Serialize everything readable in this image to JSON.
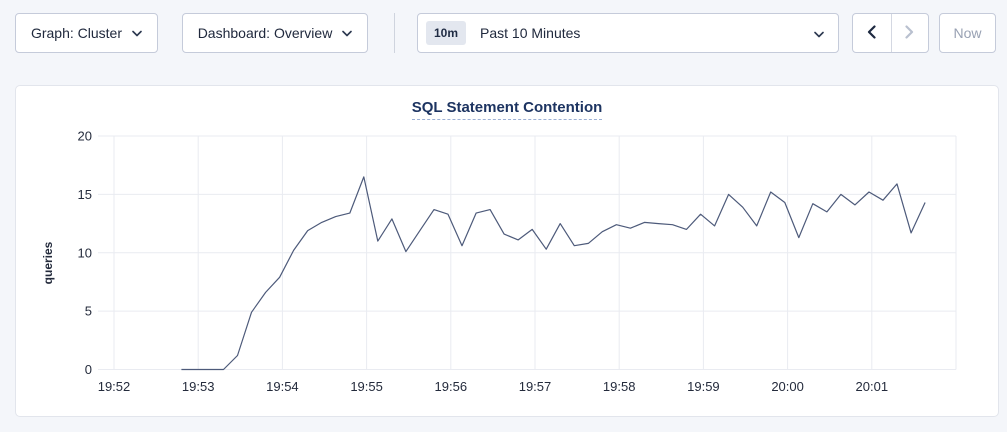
{
  "toolbar": {
    "graph_dropdown": {
      "label": "Graph: Cluster"
    },
    "dashboard_dropdown": {
      "label": "Dashboard: Overview"
    },
    "time_range": {
      "badge": "10m",
      "label": "Past 10 Minutes"
    },
    "now_button_label": "Now"
  },
  "icons": {
    "chevron_down": "chevron-down-icon",
    "chevron_left": "chevron-left-icon",
    "chevron_right": "chevron-right-icon"
  },
  "colors": {
    "page_bg": "#f4f6fa",
    "line": "#4d5a7a",
    "grid": "#e9ebf1",
    "tick_text": "#242b3c",
    "title": "#1d3461",
    "disabled": "#b9c0cf",
    "enabled_arrow": "#1d2940"
  },
  "chart_data": {
    "type": "line",
    "title": "SQL Statement Contention",
    "xlabel": "",
    "ylabel": "queries",
    "ylim": [
      0,
      20
    ],
    "yticks": [
      0,
      5,
      10,
      15,
      20
    ],
    "xticks": [
      "19:52",
      "19:53",
      "19:54",
      "19:55",
      "19:56",
      "19:57",
      "19:58",
      "19:59",
      "20:00",
      "20:01"
    ],
    "grid": true,
    "legend": "none",
    "line_color": "#4d5a7a",
    "series": [
      {
        "name": "queries",
        "t_start_sec": 48,
        "t_step_sec": 10,
        "x_origin_time": "19:52:00",
        "values": [
          0,
          0,
          0,
          0,
          1.2,
          4.9,
          6.6,
          7.9,
          10.2,
          11.9,
          12.6,
          13.1,
          13.4,
          16.5,
          11.0,
          12.9,
          10.1,
          11.9,
          13.7,
          13.3,
          10.6,
          13.4,
          13.7,
          11.6,
          11.1,
          12.0,
          10.3,
          12.5,
          10.6,
          10.8,
          11.8,
          12.4,
          12.1,
          12.6,
          12.5,
          12.4,
          12.0,
          13.3,
          12.3,
          15.0,
          13.9,
          12.3,
          15.2,
          14.3,
          11.3,
          14.2,
          13.5,
          15.0,
          14.1,
          15.2,
          14.5,
          15.9,
          11.7,
          14.3
        ]
      }
    ]
  }
}
